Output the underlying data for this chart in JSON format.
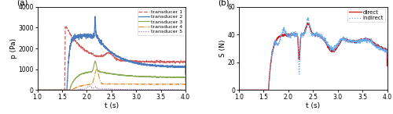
{
  "xlim": [
    1.0,
    4.0
  ],
  "xlabel": "t (s)",
  "panel_a": {
    "ylabel": "p (Pa)",
    "ylim": [
      0,
      4000
    ],
    "yticks": [
      0,
      1000,
      2000,
      3000,
      4000
    ],
    "label": "(a)",
    "legend_labels": [
      "transducer 1",
      "transducer 2",
      "transducer 3",
      "transducer 4",
      "transducer 5"
    ],
    "colors": [
      "#d45f5f",
      "#4a7bbf",
      "#8aaa50",
      "#e09030",
      "#9966bb"
    ],
    "linestyles": [
      "--",
      "-",
      "-",
      "-.",
      ":"
    ],
    "linewidths": [
      0.9,
      0.9,
      0.8,
      0.8,
      0.8
    ]
  },
  "panel_b": {
    "ylabel": "S (N)",
    "ylim": [
      0,
      60
    ],
    "yticks": [
      0,
      20,
      40,
      60
    ],
    "label": "(b)",
    "legend_labels": [
      "direct",
      "indirect"
    ],
    "colors": [
      "#cc2222",
      "#66aaee"
    ],
    "linestyles": [
      "-",
      ":"
    ],
    "linewidths": [
      1.0,
      0.9
    ]
  },
  "xticks": [
    1.0,
    1.5,
    2.0,
    2.5,
    3.0,
    3.5,
    4.0
  ],
  "xtick_labels": [
    "1.0",
    "1.5",
    "2.0",
    "2.5",
    "3.0",
    "3.5",
    "4.0"
  ]
}
